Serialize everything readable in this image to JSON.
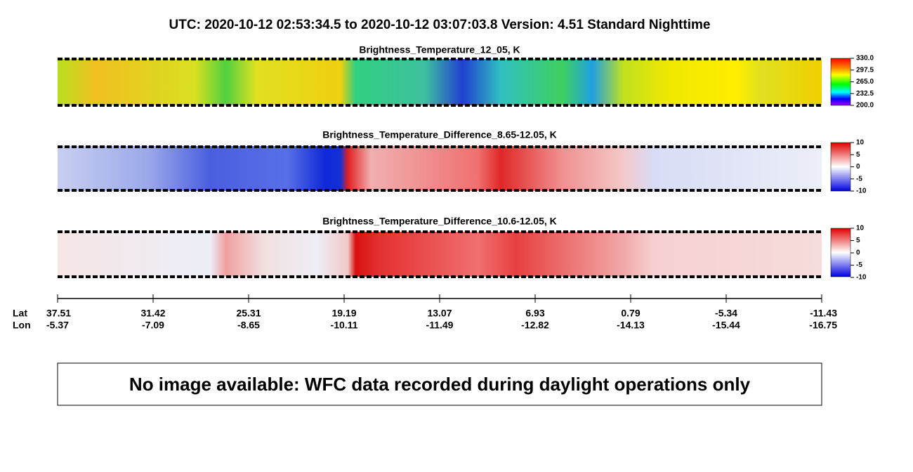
{
  "header": {
    "title": "UTC:  2020-10-12   02:53:34.5  to  2020-10-12   03:07:03.8    Version: 4.51  Standard Nighttime"
  },
  "panels": [
    {
      "title": "Brightness_Temperature_12_05, K",
      "colorbar": {
        "lim": [
          200,
          330
        ],
        "ticks": [
          {
            "value": 330,
            "label": "330.0"
          },
          {
            "value": 297.5,
            "label": "297.5"
          },
          {
            "value": 265,
            "label": "265.0"
          },
          {
            "value": 232.5,
            "label": "232.5"
          },
          {
            "value": 200,
            "label": "200.0"
          }
        ]
      }
    },
    {
      "title": "Brightness_Temperature_Difference_8.65-12.05, K",
      "colorbar": {
        "lim": [
          -10,
          10
        ],
        "ticks": [
          10,
          5,
          0,
          -5,
          -10
        ]
      }
    },
    {
      "title": "Brightness_Temperature_Difference_10.6-12.05, K",
      "colorbar": {
        "lim": [
          -10,
          10
        ],
        "ticks": [
          10,
          5,
          0,
          -5,
          -10
        ]
      }
    }
  ],
  "x_axis": {
    "lat_label": "Lat",
    "lon_label": "Lon",
    "lat": [
      "37.51",
      "31.42",
      "25.31",
      "19.19",
      "13.07",
      "6.93",
      "0.79",
      "-5.34",
      "-11.43"
    ],
    "lon": [
      "-5.37",
      "-7.09",
      "-8.65",
      "-10.11",
      "-11.49",
      "-12.82",
      "-14.13",
      "-15.44",
      "-16.75"
    ]
  },
  "notice": "No image available: WFC data recorded during daylight operations only"
}
